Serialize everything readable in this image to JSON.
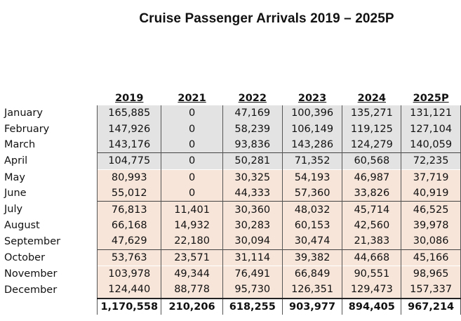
{
  "title": "Cruise Passenger Arrivals 2019 – 2025P",
  "columns": [
    "2019",
    "2021",
    "2022",
    "2023",
    "2024",
    "2025P"
  ],
  "rows": [
    {
      "month": "January",
      "values": [
        "165,885",
        "0",
        "47,169",
        "100,396",
        "135,271",
        "131,121"
      ],
      "shade": "gray"
    },
    {
      "month": "February",
      "values": [
        "147,926",
        "0",
        "58,239",
        "106,149",
        "119,125",
        "127,104"
      ],
      "shade": "gray"
    },
    {
      "month": "March",
      "values": [
        "143,176",
        "0",
        "93,836",
        "143,286",
        "124,279",
        "140,059"
      ],
      "shade": "gray"
    },
    {
      "month": "April",
      "values": [
        "104,775",
        "0",
        "50,281",
        "71,352",
        "60,568",
        "72,235"
      ],
      "shade": "gray"
    },
    {
      "month": "May",
      "values": [
        "80,993",
        "0",
        "30,325",
        "54,193",
        "46,987",
        "37,719"
      ],
      "shade": "peach"
    },
    {
      "month": "June",
      "values": [
        "55,012",
        "0",
        "44,333",
        "57,360",
        "33,826",
        "40,919"
      ],
      "shade": "peach"
    },
    {
      "month": "July",
      "values": [
        "76,813",
        "11,401",
        "30,360",
        "48,032",
        "45,714",
        "46,525"
      ],
      "shade": "peach"
    },
    {
      "month": "August",
      "values": [
        "66,168",
        "14,932",
        "30,283",
        "60,153",
        "42,560",
        "39,978"
      ],
      "shade": "peach"
    },
    {
      "month": "September",
      "values": [
        "47,629",
        "22,180",
        "30,094",
        "30,474",
        "21,383",
        "30,086"
      ],
      "shade": "peach"
    },
    {
      "month": "October",
      "values": [
        "53,763",
        "23,571",
        "31,114",
        "39,382",
        "44,668",
        "45,166"
      ],
      "shade": "peach"
    },
    {
      "month": "November",
      "values": [
        "103,978",
        "49,344",
        "76,491",
        "66,849",
        "90,551",
        "98,965"
      ],
      "shade": "peach"
    },
    {
      "month": "December",
      "values": [
        "124,440",
        "88,778",
        "95,730",
        "126,351",
        "129,473",
        "157,337"
      ],
      "shade": "peach"
    }
  ],
  "totals": [
    "1,170,558",
    "210,206",
    "618,255",
    "903,977",
    "894,405",
    "967,214"
  ],
  "colors": {
    "gray_shade": "#e3e3e3",
    "peach_shade": "#f8e5da"
  }
}
